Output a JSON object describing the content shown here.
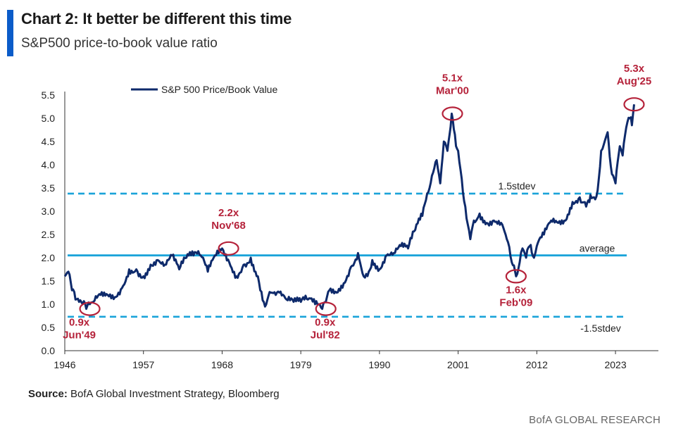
{
  "header": {
    "title": "Chart 2: It better be different this time",
    "subtitle": "S&P500 price-to-book value ratio"
  },
  "footer": {
    "source_label": "Source:",
    "source_text": "BofA Global Investment Strategy, Bloomberg",
    "brand": "BofA GLOBAL RESEARCH"
  },
  "colors": {
    "series": "#0e2a6b",
    "average": "#1aa3d9",
    "stdev": "#1aa3d9",
    "annotation": "#b5223a",
    "accent_bar": "#0b5cc9"
  },
  "chart_data": {
    "type": "line",
    "legend": {
      "position": "top-left",
      "entries": [
        "S&P 500 Price/Book Value"
      ]
    },
    "x_ticks": [
      "1946",
      "1957",
      "1968",
      "1979",
      "1990",
      "2001",
      "2012",
      "2023"
    ],
    "xlim": [
      1946,
      2029
    ],
    "ylim": [
      0,
      5.5
    ],
    "y_ticks": [
      "0.0",
      "0.5",
      "1.0",
      "1.5",
      "2.0",
      "2.5",
      "3.0",
      "3.5",
      "4.0",
      "4.5",
      "5.0",
      "5.5"
    ],
    "series": [
      {
        "name": "S&P 500 Price/Book Value",
        "x": [
          1946,
          1946.5,
          1947,
          1947.5,
          1948,
          1948.5,
          1949,
          1949.5,
          1950,
          1951,
          1952,
          1953,
          1954,
          1955,
          1956,
          1957,
          1958,
          1959,
          1960,
          1961,
          1962,
          1963,
          1964,
          1965,
          1966,
          1967,
          1968,
          1969,
          1970,
          1971,
          1972,
          1973,
          1974,
          1974.8,
          1975.5,
          1976,
          1977,
          1978,
          1979,
          1980,
          1981,
          1982,
          1982.5,
          1983,
          1984,
          1985,
          1986,
          1987,
          1987.8,
          1988.5,
          1989,
          1990,
          1991,
          1992,
          1993,
          1994,
          1995,
          1996,
          1997,
          1998,
          1998.5,
          1999,
          1999.5,
          2000.1,
          2000.7,
          2001,
          2001.5,
          2002,
          2002.7,
          2003.2,
          2004,
          2005,
          2006,
          2007,
          2007.8,
          2008.5,
          2009.1,
          2009.6,
          2010,
          2010.5,
          2011,
          2011.6,
          2012,
          2013,
          2014,
          2015,
          2016,
          2017,
          2018,
          2018.9,
          2019.5,
          2020,
          2020.5,
          2021,
          2021.9,
          2022.5,
          2023,
          2023.6,
          2024,
          2024.5,
          2025,
          2025.3,
          2025.6
        ],
        "values": [
          1.6,
          1.7,
          1.3,
          1.1,
          1.05,
          1.0,
          0.9,
          1.0,
          1.05,
          1.2,
          1.2,
          1.15,
          1.35,
          1.75,
          1.75,
          1.6,
          1.85,
          1.95,
          1.85,
          2.05,
          1.75,
          2.0,
          2.05,
          2.05,
          1.7,
          2.05,
          2.2,
          1.9,
          1.6,
          1.85,
          2.0,
          1.6,
          0.95,
          1.25,
          1.2,
          1.25,
          1.1,
          1.05,
          1.05,
          1.1,
          1.0,
          0.9,
          1.05,
          1.3,
          1.25,
          1.45,
          1.8,
          2.1,
          1.6,
          1.7,
          1.95,
          1.75,
          2.05,
          2.1,
          2.25,
          2.2,
          2.6,
          2.9,
          3.5,
          4.1,
          3.6,
          4.5,
          4.3,
          5.1,
          4.4,
          4.3,
          3.7,
          3.1,
          2.4,
          2.8,
          2.95,
          2.75,
          2.8,
          2.75,
          2.4,
          1.9,
          1.6,
          1.9,
          2.2,
          2.0,
          2.25,
          2.0,
          2.25,
          2.5,
          2.8,
          2.75,
          2.8,
          3.2,
          3.3,
          3.1,
          3.35,
          3.3,
          3.45,
          4.3,
          4.7,
          3.8,
          3.6,
          4.4,
          4.2,
          4.8,
          5.0,
          4.85,
          5.3
        ]
      }
    ],
    "reference_lines": [
      {
        "label": "1.5stdev",
        "value": 3.38,
        "style": "dashed"
      },
      {
        "label": "average",
        "value": 2.05,
        "style": "solid"
      },
      {
        "label": "-1.5stdev",
        "value": 0.73,
        "style": "dashed"
      }
    ],
    "annotations": [
      {
        "value_text": "0.9x",
        "date_text": "Jun'49",
        "x": 1949.5,
        "y": 0.9
      },
      {
        "value_text": "2.2x",
        "date_text": "Nov'68",
        "x": 1968.9,
        "y": 2.2
      },
      {
        "value_text": "0.9x",
        "date_text": "Jul'82",
        "x": 1982.5,
        "y": 0.9
      },
      {
        "value_text": "5.1x",
        "date_text": "Mar'00",
        "x": 2000.2,
        "y": 5.1
      },
      {
        "value_text": "1.6x",
        "date_text": "Feb'09",
        "x": 2009.1,
        "y": 1.6
      },
      {
        "value_text": "5.3x",
        "date_text": "Aug'25",
        "x": 2025.6,
        "y": 5.3
      }
    ]
  }
}
